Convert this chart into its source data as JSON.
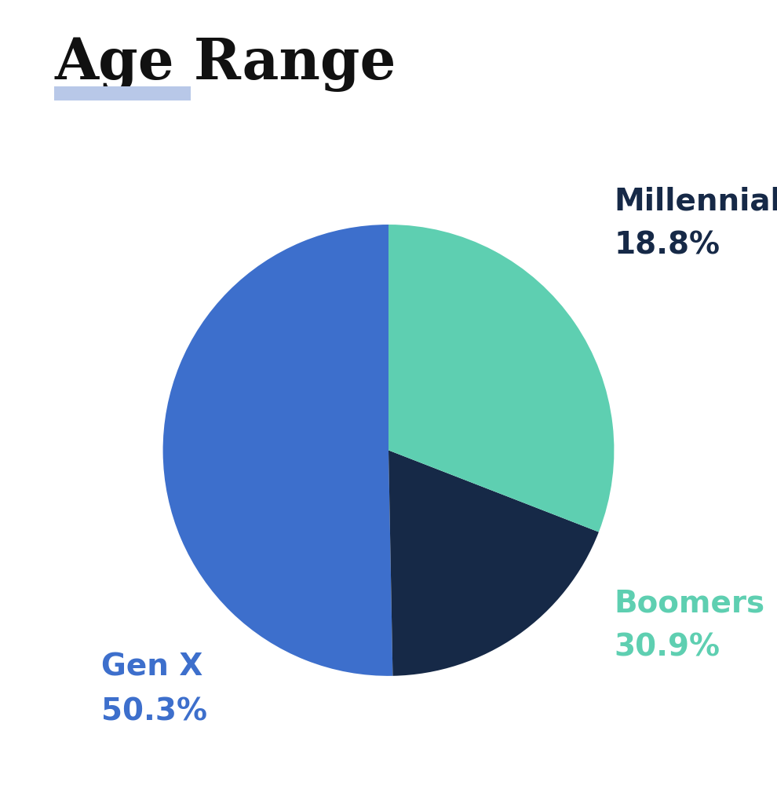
{
  "title": "Age Range",
  "title_fontsize": 52,
  "title_color": "#111111",
  "title_font": "serif",
  "underline_color": "#b8c8e8",
  "slices": [
    {
      "label": "Gen X",
      "value": 50.3,
      "color": "#3d6fcc"
    },
    {
      "label": "Millennials",
      "value": 18.8,
      "color": "#162947"
    },
    {
      "label": "Boomers",
      "value": 30.9,
      "color": "#5ecfb1"
    }
  ],
  "label_colors": {
    "Millennials": "#162947",
    "Boomers": "#5ecfb1",
    "Gen X": "#3d6fcc"
  },
  "label_fontsize": 28,
  "pct_fontsize": 28,
  "background_color": "#ffffff",
  "startangle": 90,
  "figsize": [
    9.9,
    10.24
  ],
  "dpi": 100
}
